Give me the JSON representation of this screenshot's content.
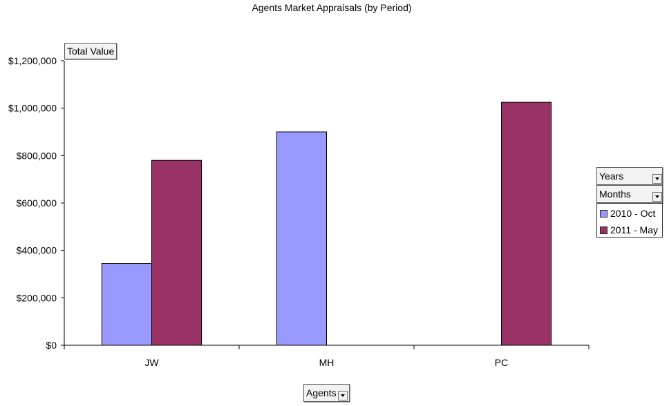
{
  "chart_data": {
    "type": "bar",
    "title": "Agents Market Appraisals (by Period)",
    "xlabel": "Agents",
    "ylabel": "Total Value",
    "categories": [
      "JW",
      "MH",
      "PC"
    ],
    "series": [
      {
        "name": "2010 - Oct",
        "color": "#9999ff",
        "values": [
          345000,
          900000,
          null
        ]
      },
      {
        "name": "2011 - May",
        "color": "#993366",
        "values": [
          780000,
          null,
          1025000
        ]
      }
    ],
    "ylim": [
      0,
      1200000
    ],
    "yticks": [
      0,
      200000,
      400000,
      600000,
      800000,
      1000000,
      1200000
    ],
    "ytick_labels": [
      "$0",
      "$200,000",
      "$400,000",
      "$600,000",
      "$800,000",
      "$1,000,000",
      "$1,200,000"
    ],
    "grid": false,
    "legend_position": "right"
  },
  "pivot_fields": {
    "data_field": "Total Value",
    "column_fields": [
      "Years",
      "Months"
    ],
    "row_field": "Agents"
  },
  "icons": {
    "dropdown": "dropdown-arrow-icon"
  }
}
